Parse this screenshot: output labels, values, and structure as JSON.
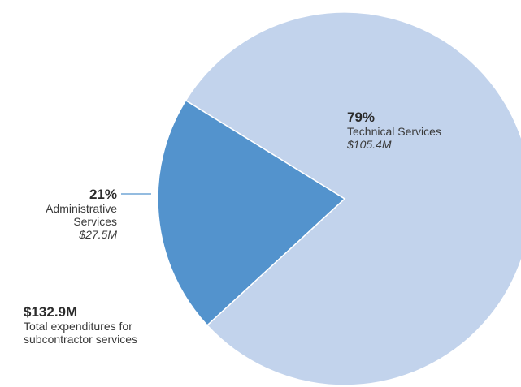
{
  "chart_data": {
    "type": "pie",
    "slices": [
      {
        "key": "tech",
        "label": "Technical Services",
        "percent": "79%",
        "value": 105.4,
        "amount_label": "$105.4M",
        "color": "#c2d3ec"
      },
      {
        "key": "admin",
        "label_lines": [
          "Administrative",
          "Services"
        ],
        "percent": "21%",
        "value": 27.5,
        "amount_label": "$27.5M",
        "color": "#5393cd"
      }
    ],
    "total": {
      "amount_label": "$132.9M",
      "caption_lines": [
        "Total expenditures for",
        "subcontractor services"
      ]
    },
    "slice_border_color": "#ffffff",
    "leader_line_color": "#5393cd"
  }
}
